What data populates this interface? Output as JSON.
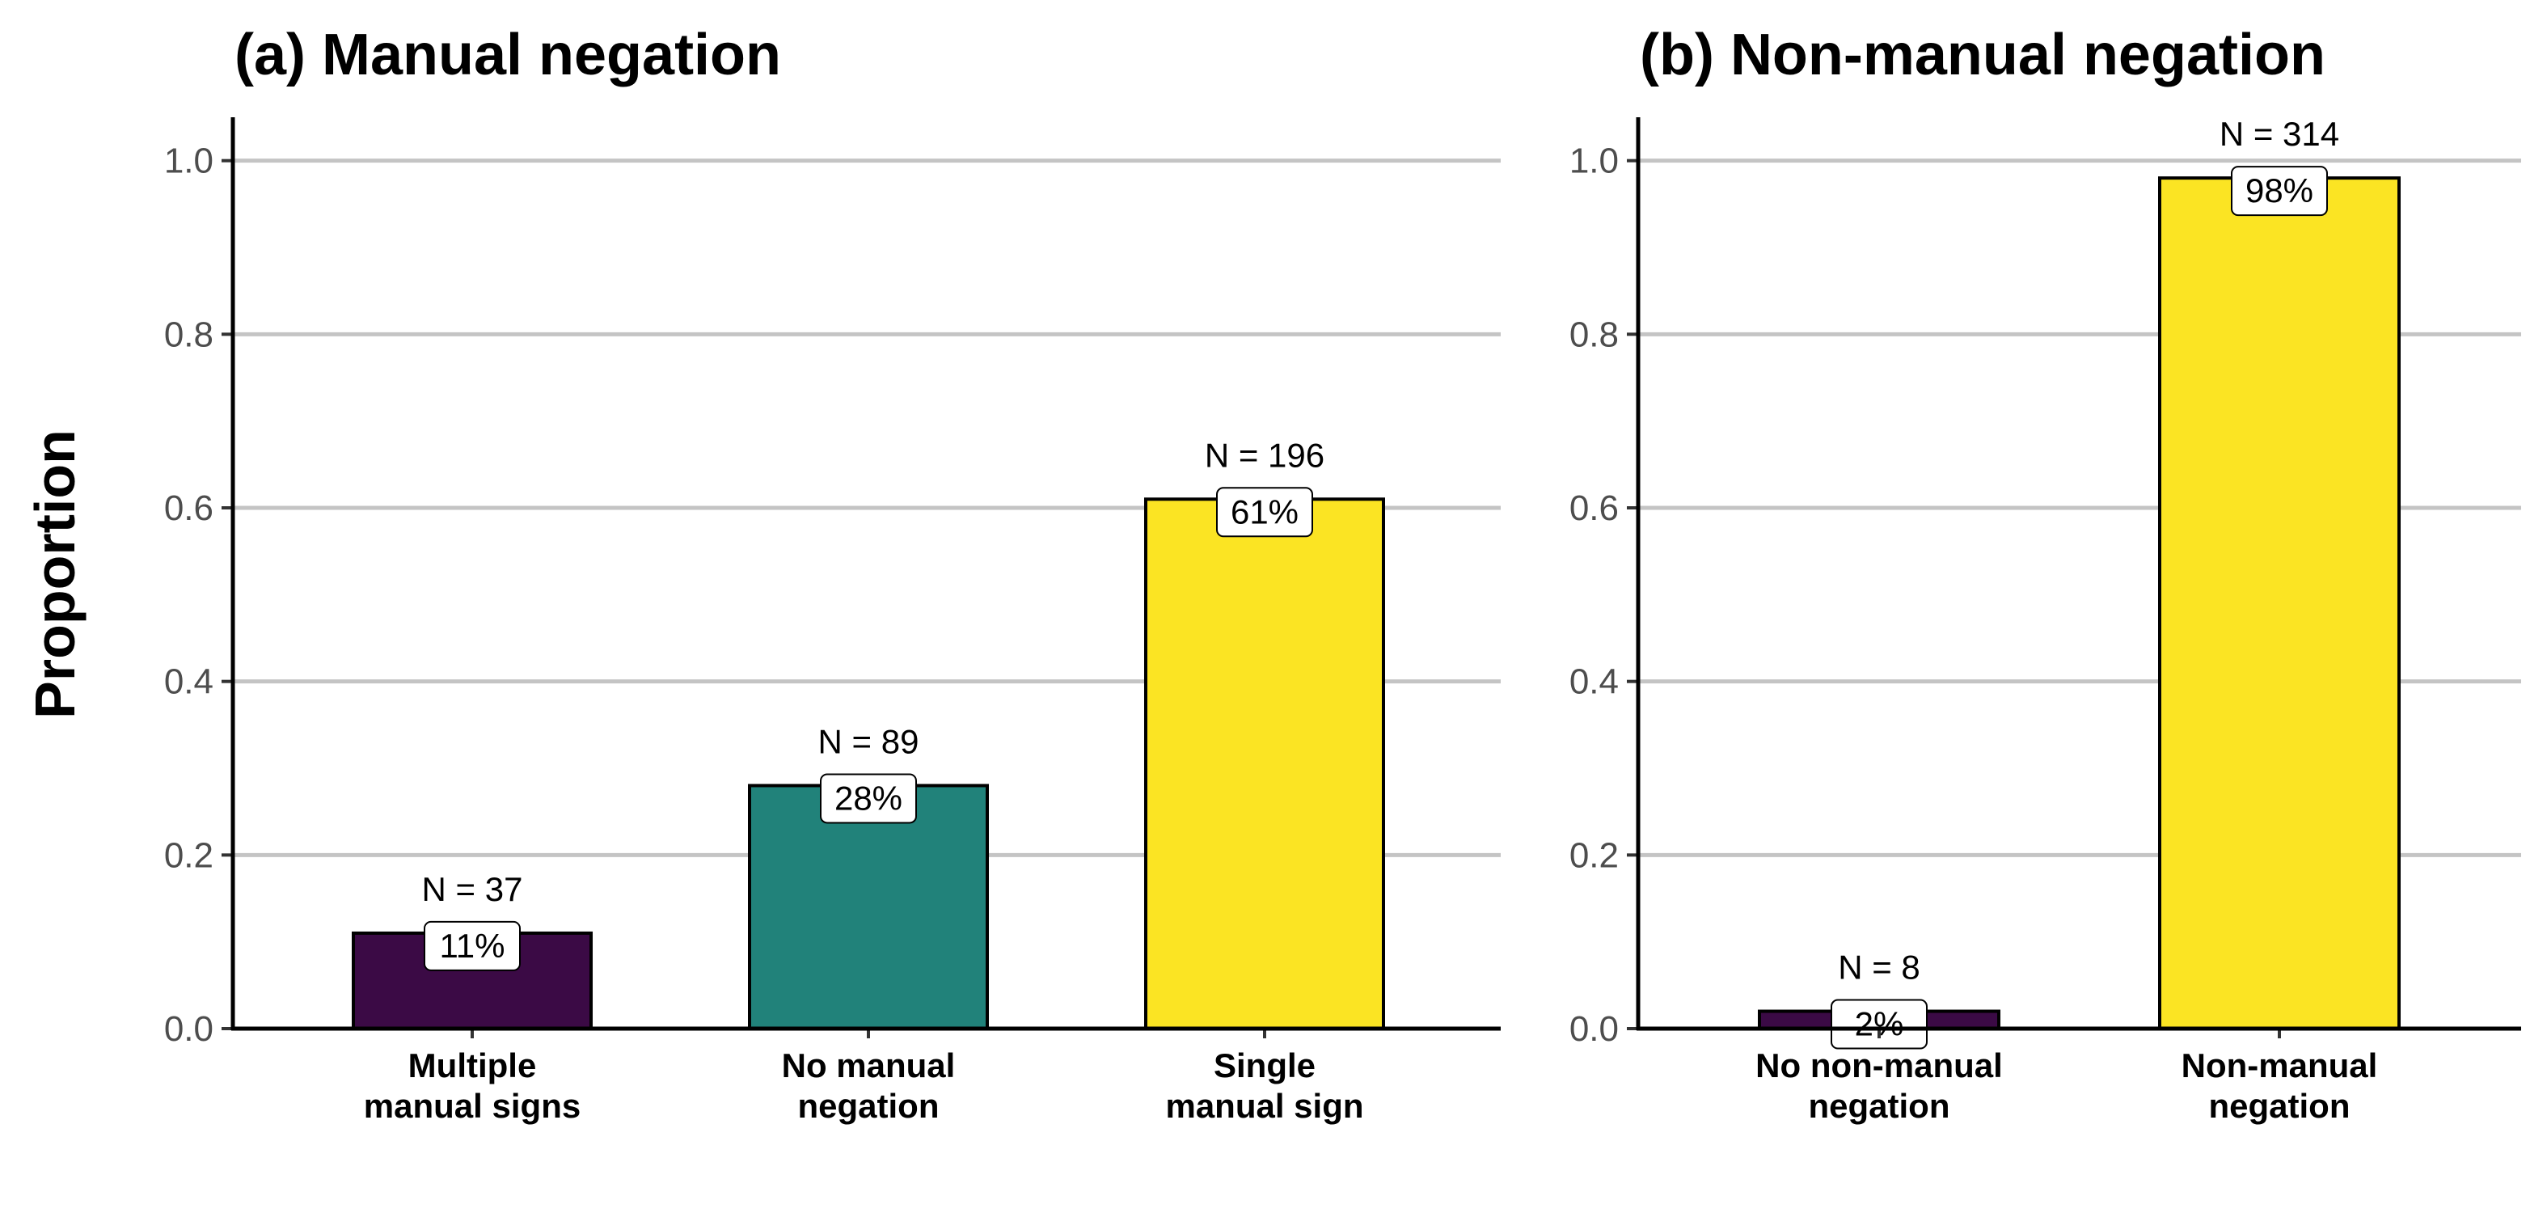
{
  "y_axis_label": "Proportion",
  "chart_data": [
    {
      "type": "bar",
      "title": "(a) Manual negation",
      "ylabel": "Proportion",
      "ylim": [
        0,
        1.05
      ],
      "yticks": [
        0.0,
        0.2,
        0.4,
        0.6,
        0.8,
        1.0
      ],
      "ytick_labels": [
        "0.0",
        "0.2",
        "0.4",
        "0.6",
        "0.8",
        "1.0"
      ],
      "grid": "horizontal major",
      "categories": [
        [
          "Multiple",
          "manual signs"
        ],
        [
          "No manual",
          "negation"
        ],
        [
          "Single",
          "manual sign"
        ]
      ],
      "values": [
        0.11,
        0.28,
        0.61
      ],
      "counts": [
        "N = 37",
        "N = 89",
        "N = 196"
      ],
      "labels": [
        "11%",
        "28%",
        "61%"
      ],
      "colors": [
        "#3b0a45",
        "#21827a",
        "#fbe423"
      ]
    },
    {
      "type": "bar",
      "title": "(b) Non-manual negation",
      "ylim": [
        0,
        1.05
      ],
      "yticks": [
        0.0,
        0.2,
        0.4,
        0.6,
        0.8,
        1.0
      ],
      "ytick_labels": [
        "0.0",
        "0.2",
        "0.4",
        "0.6",
        "0.8",
        "1.0"
      ],
      "grid": "horizontal major",
      "categories": [
        [
          "No non-manual",
          "negation"
        ],
        [
          "Non-manual",
          "negation"
        ]
      ],
      "values": [
        0.02,
        0.98
      ],
      "counts": [
        "N = 8",
        "N = 314"
      ],
      "labels": [
        "2%",
        "98%"
      ],
      "colors": [
        "#3b0a45",
        "#fbe423"
      ]
    }
  ]
}
